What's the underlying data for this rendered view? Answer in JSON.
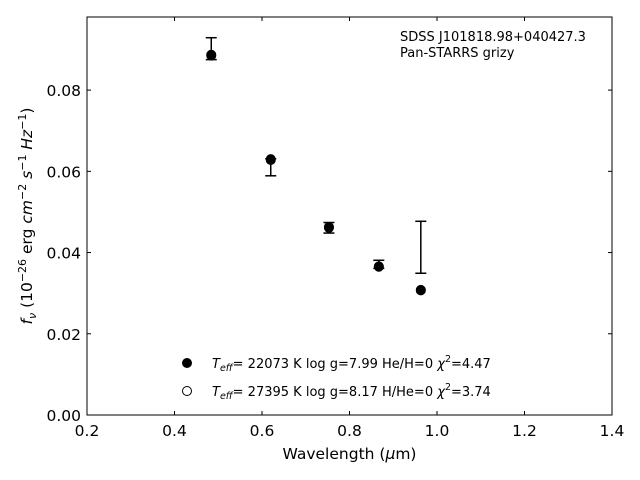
{
  "chart_data": {
    "type": "scatter",
    "xlabel": "Wavelength (μm)",
    "ylabel": "f_ν (10^-26 erg cm^-2 s^-1 Hz^-1)",
    "xlim": [
      0.2,
      1.4
    ],
    "ylim": [
      0.0,
      0.098
    ],
    "x_ticks": [
      "0.2",
      "0.4",
      "0.6",
      "0.8",
      "1.0",
      "1.2",
      "1.4"
    ],
    "y_ticks": [
      "0.00",
      "0.02",
      "0.04",
      "0.06",
      "0.08"
    ],
    "annotation_lines": [
      "SDSS J101818.98+040427.3",
      "Pan-STARRS grizy"
    ],
    "observed": {
      "x": [
        0.484,
        0.62,
        0.753,
        0.867,
        0.963
      ],
      "y": [
        0.0902,
        0.061,
        0.0461,
        0.0371,
        0.0413
      ],
      "yerr": [
        0.0027,
        0.0021,
        0.0013,
        0.001,
        0.0064
      ]
    },
    "series": [
      {
        "name": "T_eff= 22073 K  log g=7.99  He/H=0  χ^2=4.47",
        "marker": "filled",
        "x": [
          0.484,
          0.62,
          0.753,
          0.867,
          0.963
        ],
        "y": [
          0.0887,
          0.063,
          0.0463,
          0.0366,
          0.0308
        ]
      },
      {
        "name": "T_eff= 27395 K  log g=8.17  H/He=0  χ^2=3.74",
        "marker": "open",
        "x": [
          0.484,
          0.62,
          0.753,
          0.867,
          0.963
        ],
        "y": [
          0.0885,
          0.0628,
          0.0461,
          0.0365,
          0.0307
        ]
      }
    ],
    "legend_position": "lower-center",
    "grid": false
  }
}
